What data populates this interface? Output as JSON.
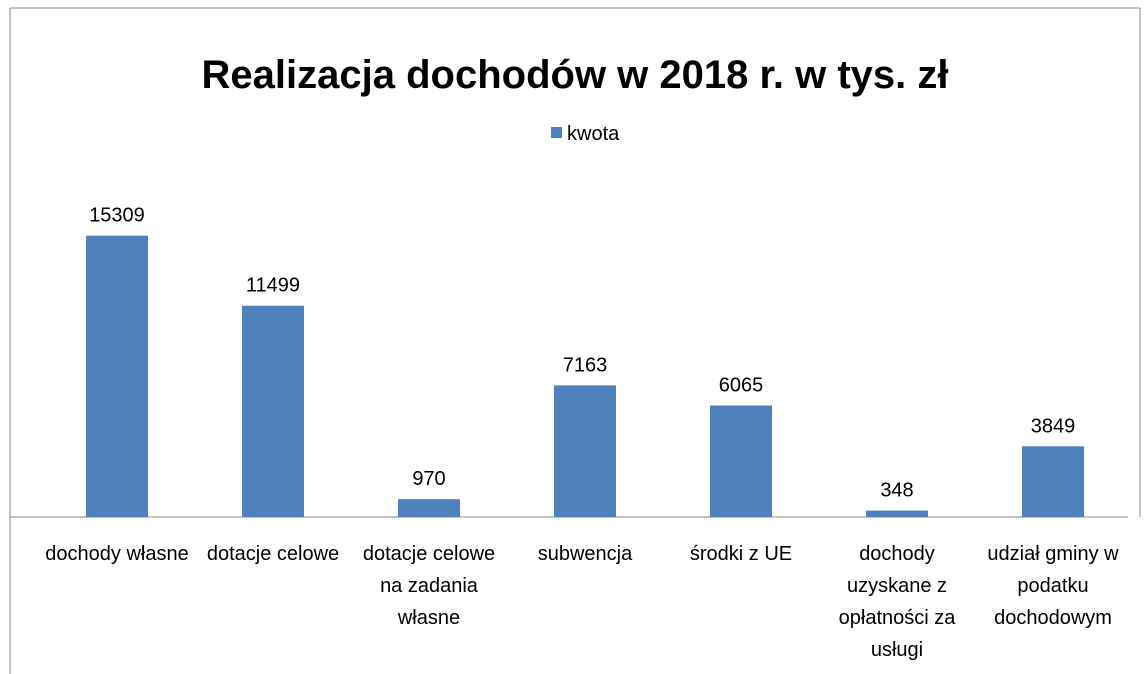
{
  "chart_data": {
    "type": "bar",
    "title": "Realizacja dochodów w 2018 r. w tys. zł",
    "categories": [
      "dochody własne",
      "dotacje celowe",
      "dotacje celowe na zadania własne",
      "subwencja",
      "środki z UE",
      "dochody uzyskane z opłatności za usługi",
      "udział gminy w podatku dochodowym"
    ],
    "series": [
      {
        "name": "kwota",
        "color": "#4f81bd",
        "values": [
          15309,
          11499,
          970,
          7163,
          6065,
          348,
          3849
        ]
      }
    ],
    "ylim": [
      0,
      16000
    ],
    "legend": "top"
  }
}
